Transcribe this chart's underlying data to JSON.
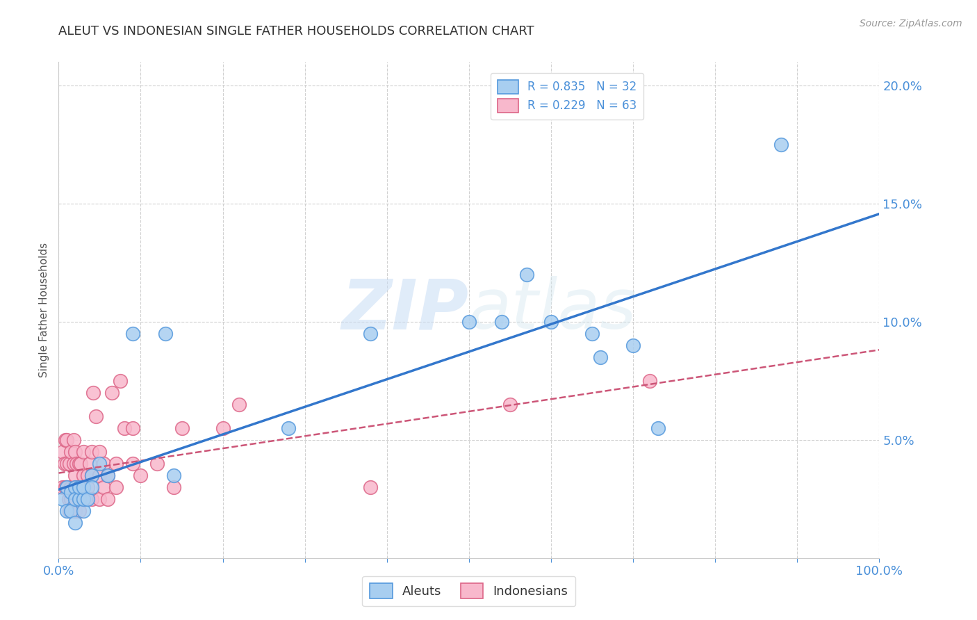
{
  "title": "ALEUT VS INDONESIAN SINGLE FATHER HOUSEHOLDS CORRELATION CHART",
  "source": "Source: ZipAtlas.com",
  "ylabel": "Single Father Households",
  "xlim": [
    0,
    1.0
  ],
  "ylim": [
    0,
    0.21
  ],
  "aleut_R": 0.835,
  "aleut_N": 32,
  "indonesian_R": 0.229,
  "indonesian_N": 63,
  "aleut_color": "#a8cef0",
  "aleut_edge_color": "#5599dd",
  "aleut_line_color": "#3377cc",
  "indonesian_color": "#f8b8cc",
  "indonesian_edge_color": "#dd6688",
  "indonesian_line_color": "#cc5577",
  "watermark_zip": "ZIP",
  "watermark_atlas": "atlas",
  "background_color": "#ffffff",
  "grid_color": "#cccccc",
  "title_color": "#333333",
  "tick_color": "#4a90d9",
  "aleut_scatter_x": [
    0.005,
    0.01,
    0.01,
    0.015,
    0.015,
    0.02,
    0.02,
    0.02,
    0.025,
    0.025,
    0.03,
    0.03,
    0.03,
    0.035,
    0.04,
    0.04,
    0.05,
    0.06,
    0.09,
    0.13,
    0.14,
    0.28,
    0.38,
    0.5,
    0.54,
    0.57,
    0.6,
    0.65,
    0.66,
    0.7,
    0.73,
    0.88
  ],
  "aleut_scatter_y": [
    0.025,
    0.03,
    0.02,
    0.028,
    0.02,
    0.03,
    0.025,
    0.015,
    0.025,
    0.03,
    0.02,
    0.025,
    0.03,
    0.025,
    0.035,
    0.03,
    0.04,
    0.035,
    0.095,
    0.095,
    0.035,
    0.055,
    0.095,
    0.1,
    0.1,
    0.12,
    0.1,
    0.095,
    0.085,
    0.09,
    0.055,
    0.175
  ],
  "indonesian_scatter_x": [
    0.005,
    0.005,
    0.007,
    0.008,
    0.008,
    0.01,
    0.01,
    0.01,
    0.012,
    0.013,
    0.013,
    0.015,
    0.015,
    0.015,
    0.018,
    0.018,
    0.018,
    0.02,
    0.02,
    0.02,
    0.02,
    0.022,
    0.022,
    0.025,
    0.025,
    0.025,
    0.027,
    0.027,
    0.03,
    0.03,
    0.03,
    0.033,
    0.035,
    0.035,
    0.038,
    0.04,
    0.04,
    0.04,
    0.042,
    0.045,
    0.05,
    0.05,
    0.05,
    0.055,
    0.055,
    0.06,
    0.06,
    0.065,
    0.07,
    0.07,
    0.075,
    0.08,
    0.09,
    0.09,
    0.1,
    0.12,
    0.14,
    0.15,
    0.2,
    0.22,
    0.38,
    0.55,
    0.72
  ],
  "indonesian_scatter_y": [
    0.03,
    0.045,
    0.04,
    0.03,
    0.05,
    0.03,
    0.04,
    0.05,
    0.025,
    0.02,
    0.04,
    0.025,
    0.03,
    0.045,
    0.03,
    0.04,
    0.05,
    0.02,
    0.025,
    0.035,
    0.045,
    0.03,
    0.04,
    0.02,
    0.03,
    0.04,
    0.03,
    0.04,
    0.025,
    0.035,
    0.045,
    0.025,
    0.03,
    0.035,
    0.04,
    0.025,
    0.035,
    0.045,
    0.07,
    0.06,
    0.025,
    0.035,
    0.045,
    0.03,
    0.04,
    0.025,
    0.035,
    0.07,
    0.03,
    0.04,
    0.075,
    0.055,
    0.04,
    0.055,
    0.035,
    0.04,
    0.03,
    0.055,
    0.055,
    0.065,
    0.03,
    0.065,
    0.075
  ]
}
